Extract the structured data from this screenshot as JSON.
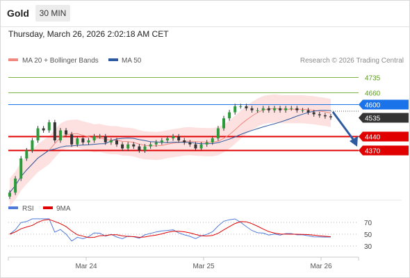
{
  "header": {
    "instrument": "Gold",
    "timeframe": "30 MIN",
    "datetime": "Thursday, March 26, 2026 2:02:18 AM CET"
  },
  "legend": {
    "ma20_label": "MA 20 + Bollinger Bands",
    "ma20_color": "#f08a80",
    "ma50_label": "MA 50",
    "ma50_color": "#2d5aa0",
    "credit": "Research © 2026 Trading Central"
  },
  "levels": [
    {
      "value": "4735",
      "type": "resistance",
      "color": "#7cb342"
    },
    {
      "value": "4660",
      "type": "resistance",
      "color": "#7cb342"
    },
    {
      "value": "4600",
      "type": "pivot",
      "color": "#1a73e8"
    },
    {
      "value": "4535",
      "type": "last",
      "color": "#333333"
    },
    {
      "value": "4440",
      "type": "support",
      "color": "#e00000"
    },
    {
      "value": "4370",
      "type": "support",
      "color": "#e00000"
    }
  ],
  "rsi": {
    "label": "RSI",
    "label_color": "#4f7ad9",
    "ma_label": "9MA",
    "ma_color": "#e00000",
    "ticks": [
      "70",
      "50",
      "30"
    ]
  },
  "xaxis": {
    "labels": [
      "Mar 24",
      "Mar 25",
      "Mar 26"
    ]
  },
  "chart_data": {
    "type": "candlestick",
    "series_close": [
      4160,
      4230,
      4330,
      4370,
      4420,
      4480,
      4470,
      4510,
      4420,
      4470,
      4450,
      4400,
      4430,
      4410,
      4420,
      4440,
      4440,
      4410,
      4420,
      4400,
      4380,
      4400,
      4390,
      4370,
      4390,
      4400,
      4410,
      4420,
      4430,
      4440,
      4420,
      4410,
      4400,
      4380,
      4400,
      4410,
      4430,
      4480,
      4530,
      4560,
      4590,
      4590,
      4580,
      4570,
      4570,
      4580,
      4570,
      4580,
      4570,
      4580,
      4580,
      4570,
      4570,
      4560,
      4550,
      4545,
      4540,
      4535
    ],
    "ylim": [
      4150,
      4780
    ],
    "rsi_range": [
      0,
      100
    ]
  }
}
